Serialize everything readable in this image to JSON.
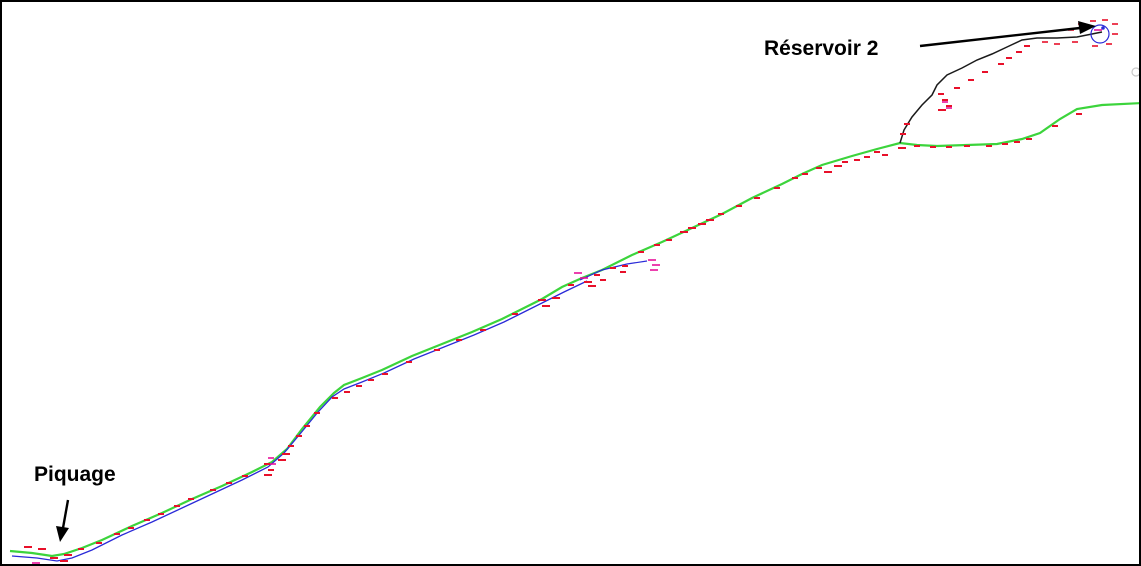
{
  "labels": {
    "reservoir": "Réservoir 2",
    "piquage": "Piquage"
  },
  "colors": {
    "pipeline_green": "#3cd43c",
    "pipeline_blue": "#2a2ad8",
    "branch_black": "#1a1a1a",
    "marker_red": "#e8102a",
    "marker_magenta": "#e8109a",
    "annotation_black": "#000000"
  }
}
